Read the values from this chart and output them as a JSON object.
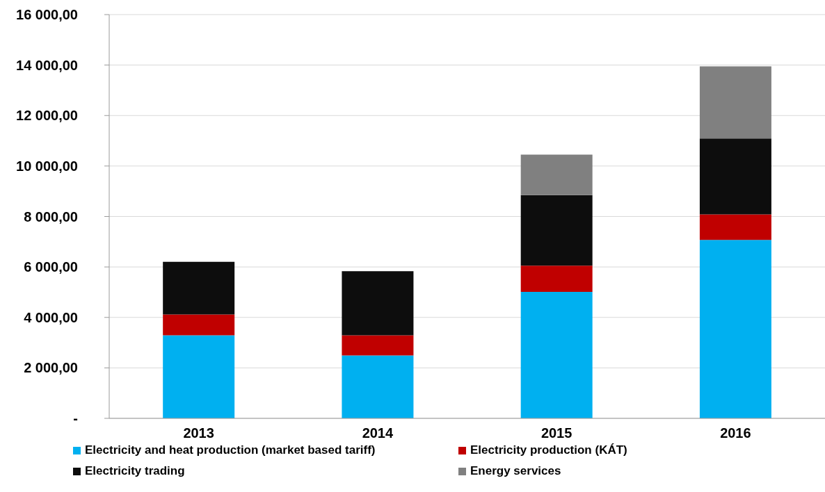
{
  "chart_data": {
    "type": "bar",
    "stacked": true,
    "categories": [
      "2013",
      "2014",
      "2015",
      "2016"
    ],
    "series": [
      {
        "name": "Electricity and heat production (market based tariff)",
        "color": "#00b0f0",
        "values": [
          3290,
          2490,
          5010,
          7070
        ]
      },
      {
        "name": "Electricity production (KÁT)",
        "color": "#c00000",
        "values": [
          830,
          800,
          1040,
          1010
        ]
      },
      {
        "name": "Electricity trading",
        "color": "#0d0d0d",
        "values": [
          2080,
          2540,
          2800,
          3010
        ]
      },
      {
        "name": "Energy services",
        "color": "#808080",
        "values": [
          null,
          null,
          1600,
          2860
        ]
      }
    ],
    "ylim": [
      0,
      16000
    ],
    "yticks": [
      {
        "value": 0,
        "label": "-"
      },
      {
        "value": 2000,
        "label": "2 000,00"
      },
      {
        "value": 4000,
        "label": "4 000,00"
      },
      {
        "value": 6000,
        "label": "6 000,00"
      },
      {
        "value": 8000,
        "label": "8 000,00"
      },
      {
        "value": 10000,
        "label": "10 000,00"
      },
      {
        "value": 12000,
        "label": "12 000,00"
      },
      {
        "value": 14000,
        "label": "14 000,00"
      },
      {
        "value": 16000,
        "label": "16 000,00"
      }
    ],
    "grid": "y",
    "legend": "bottom"
  }
}
